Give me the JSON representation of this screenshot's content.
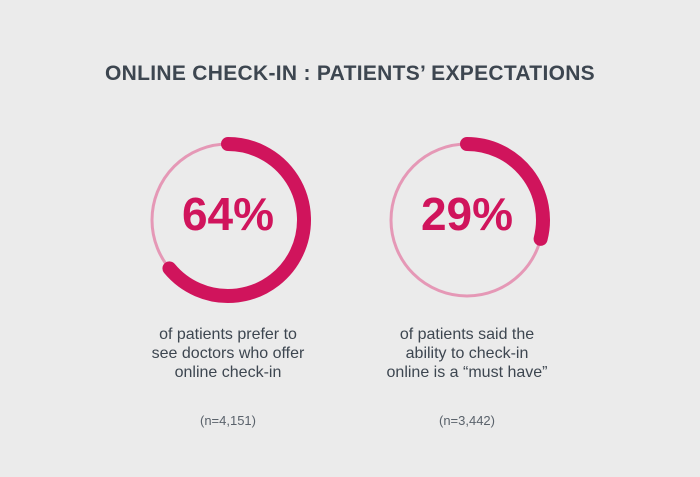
{
  "title": "ONLINE CHECK-IN : PATIENTS’ EXPECTATIONS",
  "colors": {
    "background": "#ebebeb",
    "accent": "#d0145c",
    "track": "#e598b6",
    "text": "#3d4650"
  },
  "stats": [
    {
      "percent_label": "64%",
      "description_lines": [
        "of patients prefer to",
        "see doctors who offer",
        "online check-in"
      ],
      "sample": "(n=4,151)"
    },
    {
      "percent_label": "29%",
      "description_lines": [
        "of patients said the",
        "ability to check-in",
        "online is a “must have”"
      ],
      "sample": "(n=3,442)"
    }
  ],
  "chart_data": [
    {
      "type": "pie",
      "style": "donut",
      "value": 64,
      "max": 100,
      "label": "64%"
    },
    {
      "type": "pie",
      "style": "donut",
      "value": 29,
      "max": 100,
      "label": "29%"
    }
  ]
}
